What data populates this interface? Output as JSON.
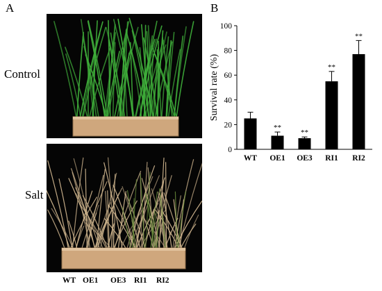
{
  "figure": {
    "panel_a_letter": "A",
    "panel_b_letter": "B",
    "row_labels": [
      "Control",
      "Salt"
    ],
    "genotype_labels": [
      "WT",
      "OE1",
      "OE3",
      "RI1",
      "RI2"
    ]
  },
  "colors": {
    "bar": "#000000",
    "photo_background": "#050505",
    "plant_green": "#3fae3a",
    "plant_straw": "#c9b08a",
    "pot": "#cfa77d"
  },
  "chart_data": {
    "type": "bar",
    "categories": [
      "WT",
      "OE1",
      "OE3",
      "RI1",
      "RI2"
    ],
    "values": [
      25,
      11,
      9,
      55,
      77
    ],
    "error": [
      5,
      3,
      1,
      8,
      11
    ],
    "significance": [
      "",
      "**",
      "**",
      "**",
      "**"
    ],
    "title": "",
    "xlabel": "",
    "ylabel": "Survival rate (%)",
    "ylim": [
      0,
      100
    ],
    "yticks": [
      0,
      20,
      40,
      60,
      80,
      100
    ],
    "grid": false,
    "legend": "none"
  }
}
